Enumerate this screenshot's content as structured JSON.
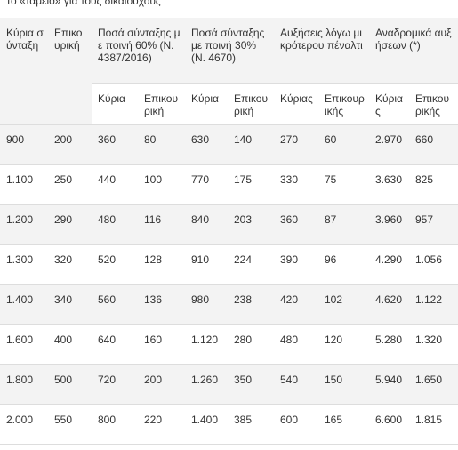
{
  "header": {
    "title": "Το «ταμείο» για τους δικαιούχους"
  },
  "table": {
    "group_headers": [
      "Κύρια σύνταξη",
      "Επικουρική",
      "Ποσά σύνταξης με ποινή 60% (Ν. 4387/2016)",
      "Ποσά σύνταξης με ποινή 30% (Ν. 4670)",
      "Αυξήσεις λόγω μικρότερου πέναλτι",
      "Αναδρομικά αυξήσεων (*)"
    ],
    "sub_headers": [
      "Κύρια",
      "Επικουρική",
      "Κύρια",
      "Επικουρική",
      "Κύριας",
      "Επικουρικής",
      "Κύριας",
      "Επικουρικής"
    ],
    "rows": [
      [
        "900",
        "200",
        "360",
        "80",
        "630",
        "140",
        "270",
        "60",
        "2.970",
        "660"
      ],
      [
        "1.100",
        "250",
        "440",
        "100",
        "770",
        "175",
        "330",
        "75",
        "3.630",
        "825"
      ],
      [
        "1.200",
        "290",
        "480",
        "116",
        "840",
        "203",
        "360",
        "87",
        "3.960",
        "957"
      ],
      [
        "1.300",
        "320",
        "520",
        "128",
        "910",
        "224",
        "390",
        "96",
        "4.290",
        "1.056"
      ],
      [
        "1.400",
        "340",
        "560",
        "136",
        "980",
        "238",
        "420",
        "102",
        "4.620",
        "1.122"
      ],
      [
        "1.600",
        "400",
        "640",
        "160",
        "1.120",
        "280",
        "480",
        "120",
        "5.280",
        "1.320"
      ],
      [
        "1.800",
        "500",
        "720",
        "200",
        "1.260",
        "350",
        "540",
        "150",
        "5.940",
        "1.650"
      ],
      [
        "2.000",
        "550",
        "800",
        "220",
        "1.400",
        "385",
        "600",
        "165",
        "6.600",
        "1.815"
      ]
    ]
  }
}
